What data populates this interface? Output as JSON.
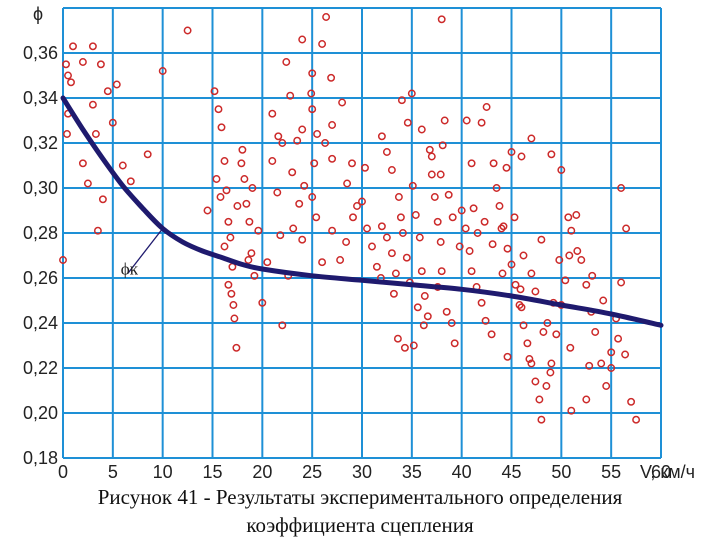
{
  "caption": {
    "line1": "Рисунок 41 - Результаты экспериментального определения",
    "line2": "коэффициента сцепления"
  },
  "chart_data": {
    "type": "scatter",
    "ylabel": "ϕ",
    "xlabel": "V, км/ч",
    "xlim": [
      0,
      60
    ],
    "ylim": [
      0.18,
      0.38
    ],
    "x_ticks": [
      "0",
      "5",
      "10",
      "15",
      "20",
      "25",
      "30",
      "35",
      "40",
      "45",
      "50",
      "55",
      "60"
    ],
    "y_ticks": [
      "0,18",
      "0,20",
      "0,22",
      "0,24",
      "0,26",
      "0,28",
      "0,30",
      "0,32",
      "0,34",
      "0,36"
    ],
    "grid": true,
    "colors": {
      "grid": "#1e90d6",
      "points": "#cc2a2a",
      "curve": "#1f1a6e"
    },
    "curve_label": "ϕк",
    "curve": [
      [
        0,
        0.34
      ],
      [
        2,
        0.326
      ],
      [
        4,
        0.313
      ],
      [
        6,
        0.301
      ],
      [
        8,
        0.291
      ],
      [
        10,
        0.282
      ],
      [
        12,
        0.276
      ],
      [
        14,
        0.272
      ],
      [
        16,
        0.269
      ],
      [
        18,
        0.266
      ],
      [
        20,
        0.264
      ],
      [
        25,
        0.261
      ],
      [
        30,
        0.259
      ],
      [
        35,
        0.257
      ],
      [
        40,
        0.255
      ],
      [
        45,
        0.252
      ],
      [
        50,
        0.248
      ],
      [
        55,
        0.244
      ],
      [
        60,
        0.239
      ]
    ],
    "points": [
      [
        0,
        0.268
      ],
      [
        0.3,
        0.355
      ],
      [
        0.5,
        0.35
      ],
      [
        0.8,
        0.347
      ],
      [
        0.5,
        0.333
      ],
      [
        0.4,
        0.324
      ],
      [
        1,
        0.363
      ],
      [
        2,
        0.356
      ],
      [
        2,
        0.311
      ],
      [
        2.5,
        0.302
      ],
      [
        3,
        0.363
      ],
      [
        3,
        0.337
      ],
      [
        3.3,
        0.324
      ],
      [
        3.5,
        0.281
      ],
      [
        3.8,
        0.355
      ],
      [
        4,
        0.295
      ],
      [
        4.5,
        0.343
      ],
      [
        5,
        0.329
      ],
      [
        5.4,
        0.346
      ],
      [
        6,
        0.31
      ],
      [
        6.8,
        0.303
      ],
      [
        8.5,
        0.315
      ],
      [
        10,
        0.352
      ],
      [
        12.5,
        0.37
      ],
      [
        14.5,
        0.29
      ],
      [
        15.2,
        0.343
      ],
      [
        15.6,
        0.335
      ],
      [
        15.9,
        0.327
      ],
      [
        16.2,
        0.312
      ],
      [
        16.4,
        0.299
      ],
      [
        16.6,
        0.285
      ],
      [
        16.8,
        0.278
      ],
      [
        15.4,
        0.304
      ],
      [
        16.2,
        0.274
      ],
      [
        17,
        0.265
      ],
      [
        16.6,
        0.257
      ],
      [
        16.9,
        0.253
      ],
      [
        17.1,
        0.248
      ],
      [
        17.2,
        0.242
      ],
      [
        17.4,
        0.229
      ],
      [
        18,
        0.317
      ],
      [
        18.2,
        0.304
      ],
      [
        18.4,
        0.293
      ],
      [
        18.7,
        0.285
      ],
      [
        18.9,
        0.271
      ],
      [
        19.2,
        0.261
      ],
      [
        17.9,
        0.311
      ],
      [
        19,
        0.3
      ],
      [
        20,
        0.249
      ],
      [
        20.5,
        0.267
      ],
      [
        21,
        0.312
      ],
      [
        22,
        0.239
      ],
      [
        21.5,
        0.298
      ],
      [
        21.8,
        0.279
      ],
      [
        22,
        0.32
      ],
      [
        23,
        0.307
      ],
      [
        23.5,
        0.321
      ],
      [
        24,
        0.326
      ],
      [
        24.2,
        0.301
      ],
      [
        24,
        0.277
      ],
      [
        22.4,
        0.356
      ],
      [
        22.8,
        0.341
      ],
      [
        21,
        0.333
      ],
      [
        24,
        0.366
      ],
      [
        25,
        0.351
      ],
      [
        25,
        0.335
      ],
      [
        25.5,
        0.324
      ],
      [
        25.2,
        0.311
      ],
      [
        25,
        0.296
      ],
      [
        26,
        0.364
      ],
      [
        26.4,
        0.376
      ],
      [
        27,
        0.313
      ],
      [
        28,
        0.338
      ],
      [
        27,
        0.328
      ],
      [
        25.4,
        0.287
      ],
      [
        26,
        0.267
      ],
      [
        27,
        0.281
      ],
      [
        28.5,
        0.302
      ],
      [
        29,
        0.311
      ],
      [
        29.5,
        0.292
      ],
      [
        30,
        0.294
      ],
      [
        30.5,
        0.282
      ],
      [
        31,
        0.274
      ],
      [
        31.5,
        0.265
      ],
      [
        32,
        0.283
      ],
      [
        32.5,
        0.278
      ],
      [
        33,
        0.271
      ],
      [
        33.4,
        0.262
      ],
      [
        33.7,
        0.296
      ],
      [
        33.9,
        0.287
      ],
      [
        34.1,
        0.28
      ],
      [
        34.5,
        0.269
      ],
      [
        34.8,
        0.258
      ],
      [
        35.1,
        0.301
      ],
      [
        35.4,
        0.288
      ],
      [
        35.8,
        0.278
      ],
      [
        36,
        0.263
      ],
      [
        36.3,
        0.252
      ],
      [
        36.6,
        0.243
      ],
      [
        37,
        0.306
      ],
      [
        37.3,
        0.296
      ],
      [
        37.6,
        0.285
      ],
      [
        37.9,
        0.276
      ],
      [
        38,
        0.263
      ],
      [
        38.5,
        0.245
      ],
      [
        39,
        0.24
      ],
      [
        39.3,
        0.231
      ],
      [
        32,
        0.323
      ],
      [
        33,
        0.308
      ],
      [
        32.5,
        0.316
      ],
      [
        34,
        0.339
      ],
      [
        34.6,
        0.329
      ],
      [
        35,
        0.342
      ],
      [
        36,
        0.326
      ],
      [
        37,
        0.314
      ],
      [
        38,
        0.375
      ],
      [
        38.3,
        0.33
      ],
      [
        38.1,
        0.319
      ],
      [
        40,
        0.29
      ],
      [
        40.4,
        0.282
      ],
      [
        40.8,
        0.272
      ],
      [
        41,
        0.263
      ],
      [
        41.5,
        0.256
      ],
      [
        42,
        0.249
      ],
      [
        42.4,
        0.241
      ],
      [
        43,
        0.235
      ],
      [
        43.5,
        0.3
      ],
      [
        43.8,
        0.292
      ],
      [
        44.2,
        0.283
      ],
      [
        44.6,
        0.273
      ],
      [
        45,
        0.266
      ],
      [
        45.4,
        0.257
      ],
      [
        45.8,
        0.248
      ],
      [
        46.2,
        0.239
      ],
      [
        46.6,
        0.231
      ],
      [
        47,
        0.222
      ],
      [
        47.4,
        0.214
      ],
      [
        47.8,
        0.206
      ],
      [
        48,
        0.197
      ],
      [
        48.5,
        0.212
      ],
      [
        49,
        0.222
      ],
      [
        49.5,
        0.235
      ],
      [
        50,
        0.248
      ],
      [
        50.4,
        0.259
      ],
      [
        50.8,
        0.27
      ],
      [
        51,
        0.281
      ],
      [
        51.5,
        0.288
      ],
      [
        52,
        0.268
      ],
      [
        52.5,
        0.257
      ],
      [
        53,
        0.245
      ],
      [
        53.4,
        0.236
      ],
      [
        54,
        0.222
      ],
      [
        54.5,
        0.212
      ],
      [
        55,
        0.227
      ],
      [
        55.5,
        0.242
      ],
      [
        56,
        0.258
      ],
      [
        56.5,
        0.282
      ],
      [
        57,
        0.205
      ],
      [
        57.5,
        0.197
      ],
      [
        56,
        0.3
      ],
      [
        55,
        0.22
      ],
      [
        52.5,
        0.206
      ],
      [
        51,
        0.201
      ],
      [
        45,
        0.316
      ],
      [
        46,
        0.314
      ],
      [
        47,
        0.322
      ],
      [
        49,
        0.315
      ],
      [
        50,
        0.308
      ],
      [
        44.5,
        0.309
      ],
      [
        43.2,
        0.311
      ],
      [
        42,
        0.329
      ],
      [
        40.5,
        0.33
      ],
      [
        41,
        0.311
      ],
      [
        42.5,
        0.336
      ],
      [
        44,
        0.282
      ],
      [
        46.2,
        0.27
      ],
      [
        47,
        0.262
      ],
      [
        48,
        0.277
      ],
      [
        49.8,
        0.268
      ],
      [
        50.7,
        0.287
      ],
      [
        51.6,
        0.272
      ],
      [
        53.1,
        0.261
      ],
      [
        54.2,
        0.25
      ],
      [
        55.7,
        0.233
      ],
      [
        56.4,
        0.226
      ],
      [
        46,
        0.247
      ],
      [
        47.4,
        0.254
      ],
      [
        48.6,
        0.24
      ],
      [
        49.2,
        0.249
      ],
      [
        45.3,
        0.287
      ],
      [
        44.1,
        0.262
      ],
      [
        43.1,
        0.275
      ],
      [
        42.3,
        0.285
      ],
      [
        41.6,
        0.28
      ],
      [
        41.2,
        0.291
      ],
      [
        39.8,
        0.274
      ],
      [
        39.1,
        0.287
      ],
      [
        38.7,
        0.297
      ],
      [
        37.6,
        0.256
      ],
      [
        35.6,
        0.247
      ],
      [
        33.2,
        0.253
      ],
      [
        31.9,
        0.26
      ],
      [
        30.3,
        0.309
      ],
      [
        29.1,
        0.287
      ],
      [
        28.4,
        0.276
      ],
      [
        27.8,
        0.268
      ],
      [
        26.9,
        0.349
      ],
      [
        26.3,
        0.32
      ],
      [
        23.7,
        0.293
      ],
      [
        22.6,
        0.261
      ],
      [
        19.6,
        0.281
      ],
      [
        18.6,
        0.268
      ],
      [
        17.5,
        0.292
      ],
      [
        23.1,
        0.282
      ],
      [
        24.9,
        0.342
      ],
      [
        21.6,
        0.323
      ],
      [
        15.8,
        0.296
      ],
      [
        37.9,
        0.306
      ],
      [
        36.8,
        0.317
      ],
      [
        34.3,
        0.229
      ],
      [
        35.2,
        0.23
      ],
      [
        33.6,
        0.233
      ],
      [
        36.2,
        0.239
      ],
      [
        46.8,
        0.224
      ],
      [
        48.9,
        0.218
      ],
      [
        50.9,
        0.229
      ],
      [
        52.8,
        0.221
      ],
      [
        44.6,
        0.225
      ],
      [
        48.2,
        0.236
      ],
      [
        45.9,
        0.255
      ]
    ]
  }
}
